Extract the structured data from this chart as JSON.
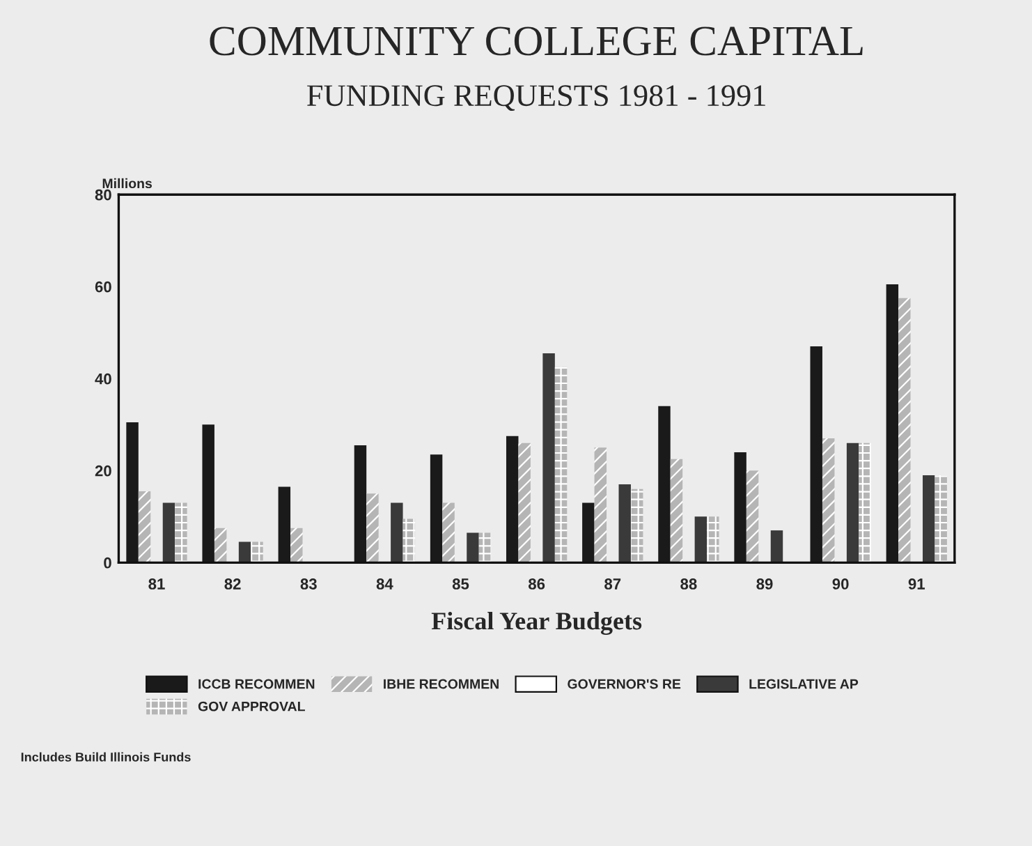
{
  "chart_data": {
    "type": "bar",
    "title": "COMMUNITY COLLEGE CAPITAL",
    "subtitle": "FUNDING REQUESTS 1981 - 1991",
    "ylabel": "Millions",
    "xlabel": "Fiscal Year Budgets",
    "categories": [
      "81",
      "82",
      "83",
      "84",
      "85",
      "86",
      "87",
      "88",
      "89",
      "90",
      "91"
    ],
    "series": [
      {
        "name": "ICCB RECOMMEN",
        "color": "#1a1a1a",
        "values": [
          30.5,
          30,
          16.5,
          25.5,
          23.5,
          27.5,
          13,
          34,
          24,
          47,
          60.5
        ]
      },
      {
        "name": "IBHE RECOMMEN",
        "color": "#b5b5b5",
        "values": [
          15.5,
          7.5,
          7.5,
          15,
          13,
          26,
          25,
          22.5,
          20,
          27,
          57.5
        ]
      },
      {
        "name": "GOVERNOR'S RE",
        "color": "#ffffff",
        "values": [
          null,
          null,
          null,
          null,
          null,
          null,
          null,
          null,
          null,
          null,
          null
        ]
      },
      {
        "name": "LEGISLATIVE AP",
        "color": "#3a3a3a",
        "values": [
          13,
          4.5,
          null,
          13,
          6.5,
          45.5,
          17,
          10,
          7,
          26,
          19
        ]
      },
      {
        "name": "GOV APPROVAL",
        "color": "#b5b5b5",
        "values": [
          13,
          4.5,
          null,
          9.5,
          6.5,
          42.5,
          16,
          10,
          null,
          26,
          19
        ]
      }
    ],
    "ylim": [
      0,
      80
    ],
    "yticks": [
      0,
      20,
      40,
      60,
      80
    ],
    "grid": false,
    "legend": "bottom",
    "annotations": [
      "Includes Build Illinois Funds"
    ]
  }
}
